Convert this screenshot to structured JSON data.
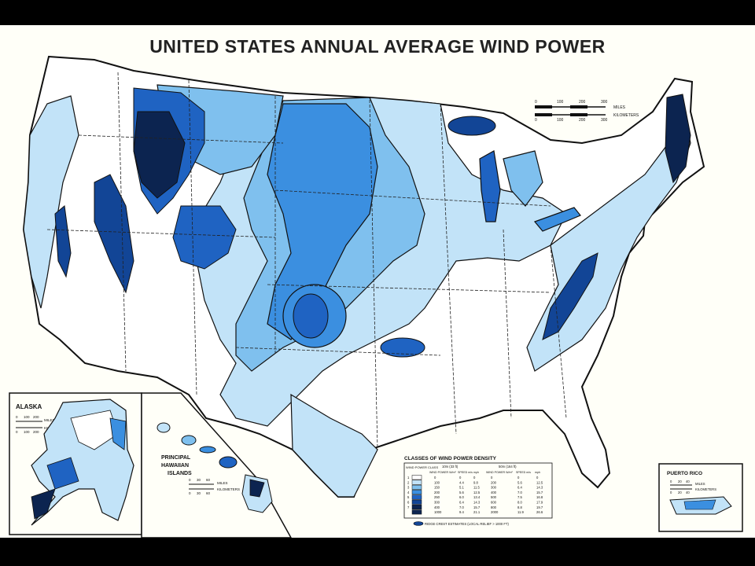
{
  "title": "UNITED STATES ANNUAL AVERAGE WIND POWER",
  "colors": {
    "background": "#fffff8",
    "class1": "#ffffff",
    "class2": "#c2e3f8",
    "class3": "#7fc0ee",
    "class4": "#3b8fe0",
    "class5": "#1f63c2",
    "class6": "#124596",
    "class7": "#0c2450"
  },
  "scale_main": {
    "miles_label": "MILES",
    "km_label": "KILOMETERS",
    "miles_ticks": [
      "0",
      "100",
      "200",
      "300"
    ],
    "km_ticks": [
      "0",
      "100",
      "200",
      "300"
    ]
  },
  "alaska": {
    "label": "ALASKA",
    "miles_ticks": [
      "0",
      "100",
      "200"
    ],
    "km_ticks": [
      "0",
      "100",
      "200"
    ],
    "miles_label": "MILES",
    "km_label": "KILOMETERS"
  },
  "hawaii": {
    "label_line1": "PRINCIPAL",
    "label_line2": "HAWAIIAN",
    "label_line3": "ISLANDS",
    "miles_ticks": [
      "0",
      "30",
      "60"
    ],
    "km_ticks": [
      "0",
      "30",
      "60"
    ],
    "miles_label": "MILES",
    "km_label": "KILOMETERS"
  },
  "puerto_rico": {
    "label": "PUERTO RICO",
    "miles_ticks": [
      "0",
      "20",
      "40"
    ],
    "km_ticks": [
      "0",
      "20",
      "40"
    ],
    "miles_label": "MILES",
    "km_label": "KILOMETERS"
  },
  "legend": {
    "title": "CLASSES OF WIND POWER DENSITY",
    "col_class": "WIND POWER CLASS",
    "height_10m": "10m (33 ft)",
    "height_50m": "50m (164 ft)",
    "col_power": "WIND POWER W/m²",
    "col_speed_ms": "SPEED m/s",
    "col_speed_mph": "mph",
    "rows": [
      {
        "cls": "1",
        "p10": "0",
        "s10": "0",
        "m10": "0",
        "p50": "0",
        "s50": "0",
        "m50": "0"
      },
      {
        "cls": "2",
        "p10": "100",
        "s10": "4.4",
        "m10": "9.8",
        "p50": "200",
        "s50": "5.6",
        "m50": "12.5"
      },
      {
        "cls": "3",
        "p10": "150",
        "s10": "5.1",
        "m10": "11.5",
        "p50": "300",
        "s50": "6.4",
        "m50": "14.3"
      },
      {
        "cls": "4",
        "p10": "200",
        "s10": "5.6",
        "m10": "12.5",
        "p50": "400",
        "s50": "7.0",
        "m50": "15.7"
      },
      {
        "cls": "5",
        "p10": "250",
        "s10": "6.0",
        "m10": "13.4",
        "p50": "500",
        "s50": "7.5",
        "m50": "16.8"
      },
      {
        "cls": "6",
        "p10": "300",
        "s10": "6.4",
        "m10": "14.3",
        "p50": "600",
        "s50": "8.0",
        "m50": "17.9"
      },
      {
        "cls": "7",
        "p10": "400",
        "s10": "7.0",
        "m10": "15.7",
        "p50": "800",
        "s50": "8.8",
        "m50": "19.7"
      },
      {
        "cls": "",
        "p10": "1000",
        "s10": "9.4",
        "m10": "21.1",
        "p50": "2000",
        "s50": "11.9",
        "m50": "26.6"
      }
    ],
    "ridge_note": "RIDGE CREST ESTIMATES (LOCAL RELIEF > 1000 FT)"
  }
}
